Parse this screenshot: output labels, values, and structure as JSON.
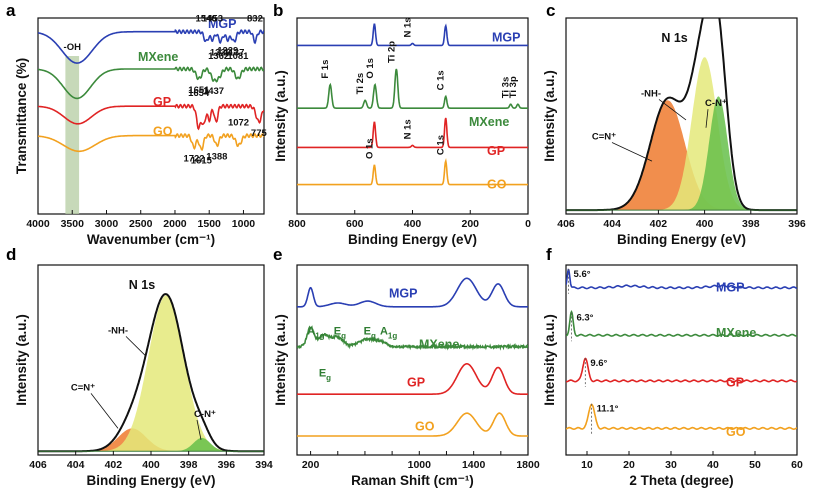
{
  "colors": {
    "MGP": "#2a3fb3",
    "MXene": "#3c8a3c",
    "GP": "#e02424",
    "GO": "#f2a11f",
    "peak_orange": "#ef7a2e",
    "peak_yellow": "#e4e97a",
    "peak_green": "#66c04a",
    "oh_band": "#b9cfa8"
  },
  "chart_data": [
    {
      "id": "a",
      "type": "line",
      "letter": "a",
      "xlabel": "Wavenumber (cm⁻¹)",
      "ylabel": "Transmittance (%)",
      "xlim": [
        4000,
        700
      ],
      "xticks": [
        "4000",
        "3500",
        "3000",
        "2500",
        "2000",
        "1500",
        "1000"
      ],
      "band_label": "-OH",
      "band": [
        3600,
        3400
      ],
      "series": [
        {
          "name": "MGP",
          "color": "#2a3fb3",
          "baseline": 0.93,
          "peaks": [
            {
              "x": 3430,
              "w": 220,
              "d": 0.16
            },
            {
              "x": 1546,
              "w": 30,
              "d": 0.05
            },
            {
              "x": 1453,
              "w": 30,
              "d": 0.04
            },
            {
              "x": 1336,
              "w": 30,
              "d": 0.05
            },
            {
              "x": 1229,
              "w": 30,
              "d": 0.04
            },
            {
              "x": 1137,
              "w": 30,
              "d": 0.05
            },
            {
              "x": 832,
              "w": 25,
              "d": 0.05
            }
          ],
          "labels": [
            {
              "x": 1546,
              "text": "1546",
              "pos": "top"
            },
            {
              "x": 1453,
              "text": "1453",
              "pos": "top"
            },
            {
              "x": 832,
              "text": "832",
              "pos": "top"
            },
            {
              "x": 1336,
              "text": "1336",
              "pos": "bottom"
            },
            {
              "x": 1229,
              "text": "1229",
              "pos": "bottom"
            },
            {
              "x": 1137,
              "text": "1137",
              "pos": "bottom"
            }
          ]
        },
        {
          "name": "MXene",
          "color": "#3c8a3c",
          "baseline": 0.74,
          "peaks": [
            {
              "x": 3430,
              "w": 200,
              "d": 0.15
            },
            {
              "x": 1651,
              "w": 40,
              "d": 0.05
            },
            {
              "x": 1437,
              "w": 40,
              "d": 0.05
            },
            {
              "x": 1362,
              "w": 40,
              "d": 0.04
            },
            {
              "x": 1081,
              "w": 40,
              "d": 0.05
            }
          ],
          "labels": [
            {
              "x": 1362,
              "text": "1362",
              "pos": "top"
            },
            {
              "x": 1081,
              "text": "1081",
              "pos": "top"
            },
            {
              "x": 1651,
              "text": "1651",
              "pos": "bottom"
            },
            {
              "x": 1437,
              "text": "1437",
              "pos": "bottom"
            }
          ]
        },
        {
          "name": "GP",
          "color": "#e02424",
          "baseline": 0.55,
          "peaks": [
            {
              "x": 3420,
              "w": 200,
              "d": 0.09
            },
            {
              "x": 1654,
              "w": 30,
              "d": 0.11
            },
            {
              "x": 1580,
              "w": 25,
              "d": 0.09
            },
            {
              "x": 1500,
              "w": 25,
              "d": 0.07
            },
            {
              "x": 1400,
              "w": 25,
              "d": 0.08
            },
            {
              "x": 775,
              "w": 40,
              "d": 0.08
            }
          ],
          "labels": [
            {
              "x": 1654,
              "text": "1654",
              "pos": "top"
            },
            {
              "x": 775,
              "text": "775",
              "pos": "bottom"
            }
          ]
        },
        {
          "name": "GO",
          "color": "#f2a11f",
          "baseline": 0.4,
          "peaks": [
            {
              "x": 3400,
              "w": 230,
              "d": 0.08
            },
            {
              "x": 1722,
              "w": 30,
              "d": 0.06
            },
            {
              "x": 1615,
              "w": 30,
              "d": 0.07
            },
            {
              "x": 1388,
              "w": 30,
              "d": 0.05
            },
            {
              "x": 1072,
              "w": 40,
              "d": 0.05
            }
          ],
          "labels": [
            {
              "x": 1072,
              "text": "1072",
              "pos": "top"
            },
            {
              "x": 1722,
              "text": "1722",
              "pos": "bottom"
            },
            {
              "x": 1615,
              "text": "1615",
              "pos": "bottom"
            },
            {
              "x": 1388,
              "text": "1388",
              "pos": "bottom"
            }
          ]
        }
      ]
    },
    {
      "id": "b",
      "type": "line",
      "letter": "b",
      "xlabel": "Binding Energy (eV)",
      "ylabel": "Intensity (a.u.)",
      "xlim": [
        800,
        0
      ],
      "xticks": [
        "800",
        "600",
        "400",
        "200",
        "0"
      ],
      "series": [
        {
          "name": "MGP",
          "color": "#2a3fb3",
          "baseline": 0.86,
          "peaks": [
            {
              "x": 532,
              "w": 4,
              "d": -0.11
            },
            {
              "x": 400,
              "w": 4,
              "d": -0.01
            },
            {
              "x": 285,
              "w": 4,
              "d": -0.1
            }
          ],
          "labels": [
            {
              "x": 400,
              "text": "N 1s",
              "pos": "top",
              "vertical": true
            }
          ]
        },
        {
          "name": "MXene",
          "color": "#3c8a3c",
          "baseline": 0.54,
          "peaks": [
            {
              "x": 685,
              "w": 5,
              "d": -0.12
            },
            {
              "x": 564,
              "w": 5,
              "d": -0.04
            },
            {
              "x": 530,
              "w": 5,
              "d": -0.12
            },
            {
              "x": 456,
              "w": 5,
              "d": -0.2
            },
            {
              "x": 285,
              "w": 4,
              "d": -0.06
            },
            {
              "x": 60,
              "w": 4,
              "d": -0.02
            },
            {
              "x": 35,
              "w": 4,
              "d": -0.02
            }
          ],
          "labels": [
            {
              "x": 685,
              "text": "F 1s",
              "pos": "top",
              "vertical": true
            },
            {
              "x": 564,
              "text": "Ti 2s",
              "pos": "top",
              "vertical": true
            },
            {
              "x": 530,
              "text": "O 1s",
              "pos": "top",
              "vertical": true
            },
            {
              "x": 456,
              "text": "Ti 2p",
              "pos": "top",
              "vertical": true
            },
            {
              "x": 285,
              "text": "C 1s",
              "pos": "top",
              "vertical": true
            },
            {
              "x": 60,
              "text": "Ti 3s",
              "pos": "top",
              "vertical": true
            },
            {
              "x": 35,
              "text": "Ti 3p",
              "pos": "top",
              "vertical": true
            }
          ]
        },
        {
          "name": "GP",
          "color": "#e02424",
          "baseline": 0.34,
          "peaks": [
            {
              "x": 532,
              "w": 4,
              "d": -0.13
            },
            {
              "x": 400,
              "w": 4,
              "d": -0.01
            },
            {
              "x": 285,
              "w": 4,
              "d": -0.15
            }
          ],
          "labels": [
            {
              "x": 400,
              "text": "N 1s",
              "pos": "top",
              "vertical": true
            }
          ]
        },
        {
          "name": "GO",
          "color": "#f2a11f",
          "baseline": 0.15,
          "peaks": [
            {
              "x": 532,
              "w": 4,
              "d": -0.1
            },
            {
              "x": 285,
              "w": 4,
              "d": -0.12
            }
          ],
          "labels": [
            {
              "x": 532,
              "text": "O 1s",
              "pos": "top",
              "vertical": true
            },
            {
              "x": 285,
              "text": "C 1s",
              "pos": "top",
              "vertical": true
            }
          ]
        }
      ]
    },
    {
      "id": "c",
      "type": "area",
      "letter": "c",
      "title": "N 1s",
      "xlabel": "Binding Energy (eV)",
      "ylabel": "Intensity (a.u.)",
      "xlim": [
        406,
        396
      ],
      "xticks": [
        "406",
        "404",
        "402",
        "400",
        "398",
        "396"
      ],
      "components": [
        {
          "name": "C=N⁺",
          "center": 401.6,
          "sigma": 0.75,
          "amp": 0.56,
          "color": "#ef7a2e"
        },
        {
          "name": "-NH-",
          "center": 400.0,
          "sigma": 0.55,
          "amp": 0.78,
          "color": "#e4e97a"
        },
        {
          "name": "C-N⁺",
          "center": 399.4,
          "sigma": 0.4,
          "amp": 0.58,
          "color": "#66c04a"
        }
      ],
      "baseline": 0.02
    },
    {
      "id": "d",
      "type": "area",
      "letter": "d",
      "title": "N 1s",
      "xlabel": "Binding Energy (eV)",
      "ylabel": "Intensity (a.u.)",
      "xlim": [
        406,
        394
      ],
      "xticks": [
        "406",
        "404",
        "402",
        "400",
        "398",
        "396",
        "394"
      ],
      "components": [
        {
          "name": "C=N⁺",
          "center": 401.0,
          "sigma": 0.75,
          "amp": 0.12,
          "color": "#ef7a2e"
        },
        {
          "name": "-NH-",
          "center": 399.2,
          "sigma": 0.95,
          "amp": 0.82,
          "color": "#e4e97a"
        },
        {
          "name": "C-N⁺",
          "center": 397.3,
          "sigma": 0.45,
          "amp": 0.07,
          "color": "#66c04a"
        }
      ],
      "baseline": 0.02
    },
    {
      "id": "e",
      "type": "line",
      "letter": "e",
      "xlabel": "Raman Shift (cm⁻¹)",
      "ylabel": "Intensity (a.u.)",
      "xlim": [
        100,
        1800
      ],
      "xticks": [
        "200",
        "400",
        "600",
        "800",
        "1000",
        "1200",
        "1400",
        "1600",
        "1800"
      ],
      "xtick_values": [
        200,
        400,
        600,
        800,
        1000,
        1200,
        1400,
        1600,
        1800
      ],
      "xtick_shown": [
        "200",
        "",
        "",
        "",
        "1000",
        "",
        "1400",
        "",
        "1800"
      ],
      "series": [
        {
          "name": "MGP",
          "color": "#2a3fb3",
          "baseline": 0.78,
          "peaks": [
            {
              "x": 200,
              "w": 20,
              "d": -0.1
            },
            {
              "x": 400,
              "w": 60,
              "d": -0.02
            },
            {
              "x": 620,
              "w": 60,
              "d": -0.03
            },
            {
              "x": 1350,
              "w": 70,
              "d": -0.15
            },
            {
              "x": 1580,
              "w": 45,
              "d": -0.12
            }
          ]
        },
        {
          "name": "MXene",
          "color": "#3c8a3c",
          "baseline": 0.57,
          "noise": 0.012,
          "peaks": [
            {
              "x": 200,
              "w": 25,
              "d": -0.1
            },
            {
              "x": 300,
              "w": 40,
              "d": -0.06
            },
            {
              "x": 400,
              "w": 40,
              "d": -0.05
            },
            {
              "x": 620,
              "w": 60,
              "d": -0.04
            },
            {
              "x": 720,
              "w": 40,
              "d": -0.02
            }
          ]
        },
        {
          "name": "GP",
          "color": "#e02424",
          "baseline": 0.32,
          "peaks": [
            {
              "x": 1350,
              "w": 70,
              "d": -0.16
            },
            {
              "x": 1580,
              "w": 45,
              "d": -0.14
            }
          ]
        },
        {
          "name": "GO",
          "color": "#f2a11f",
          "baseline": 0.1,
          "peaks": [
            {
              "x": 1350,
              "w": 70,
              "d": -0.12
            },
            {
              "x": 1590,
              "w": 45,
              "d": -0.12
            }
          ]
        }
      ],
      "annotations": [
        {
          "text": "A",
          "sub": "1g",
          "x": 205,
          "pos": "above"
        },
        {
          "text": "E",
          "sub": "g",
          "x": 290,
          "pos": "below"
        },
        {
          "text": "E",
          "sub": "g",
          "x": 400,
          "pos": "above"
        },
        {
          "text": "E",
          "sub": "g",
          "x": 620,
          "pos": "above"
        },
        {
          "text": "A",
          "sub": "1g",
          "x": 740,
          "pos": "above"
        }
      ]
    },
    {
      "id": "f",
      "type": "line",
      "letter": "f",
      "xlabel": "2 Theta (degree)",
      "ylabel": "Intensity (a.u.)",
      "xlim": [
        5,
        60
      ],
      "xticks": [
        "10",
        "20",
        "30",
        "40",
        "50",
        "60"
      ],
      "series": [
        {
          "name": "MGP",
          "color": "#2a3fb3",
          "baseline": 0.88,
          "peak_label": "5.6°",
          "peaks": [
            {
              "x": 5.6,
              "w": 0.3,
              "d": -0.1
            },
            {
              "x": 20,
              "w": 3,
              "d": -0.01
            },
            {
              "x": 42,
              "w": 3,
              "d": -0.01
            }
          ]
        },
        {
          "name": "MXene",
          "color": "#3c8a3c",
          "baseline": 0.63,
          "peak_label": "6.3°",
          "peaks": [
            {
              "x": 6.3,
              "w": 0.4,
              "d": -0.12
            }
          ]
        },
        {
          "name": "GP",
          "color": "#e02424",
          "baseline": 0.39,
          "peak_label": "9.6°",
          "peaks": [
            {
              "x": 9.6,
              "w": 0.6,
              "d": -0.12
            }
          ]
        },
        {
          "name": "GO",
          "color": "#f2a11f",
          "baseline": 0.14,
          "peak_label": "11.1°",
          "peaks": [
            {
              "x": 11.1,
              "w": 0.7,
              "d": -0.13
            }
          ]
        }
      ]
    }
  ]
}
